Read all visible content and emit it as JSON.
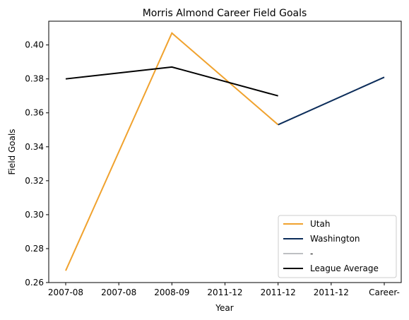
{
  "chart_data": {
    "type": "line",
    "title": "Morris Almond Career Field Goals",
    "xlabel": "Year",
    "ylabel": "Field Goals",
    "categories": [
      "2007-08",
      "2007-08",
      "2008-09",
      "2011-12",
      "2011-12",
      "2011-12",
      "Career-"
    ],
    "ylim": [
      0.26,
      0.414
    ],
    "yticks": [
      "0.26",
      "0.28",
      "0.30",
      "0.32",
      "0.34",
      "0.36",
      "0.38",
      "0.40"
    ],
    "grid": false,
    "legend_position": "bottom-right",
    "series": [
      {
        "name": "Utah",
        "color": "#F0A22E",
        "points": [
          [
            0,
            0.267
          ],
          [
            2,
            0.407
          ],
          [
            4,
            0.353
          ]
        ]
      },
      {
        "name": "Washington",
        "color": "#0C2D5A",
        "points": [
          [
            4,
            0.353
          ],
          [
            6,
            0.381
          ]
        ]
      },
      {
        "name": "-",
        "color": "#BEC0C2",
        "points": []
      },
      {
        "name": "League Average",
        "color": "#000000",
        "points": [
          [
            0,
            0.38
          ],
          [
            2,
            0.387
          ],
          [
            4,
            0.37
          ]
        ]
      }
    ]
  }
}
